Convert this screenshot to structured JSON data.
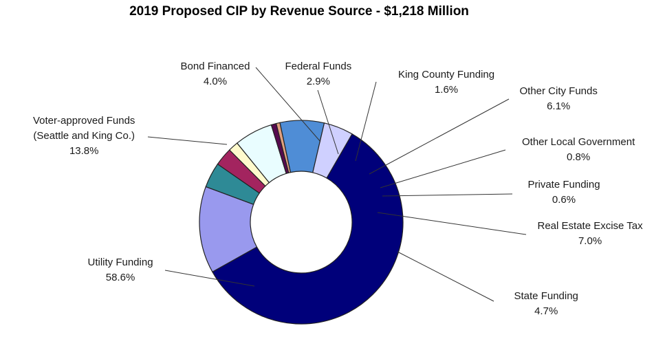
{
  "chart_data": {
    "type": "pie",
    "title": "2019 Proposed CIP by Revenue Source - $1,218 Million",
    "style": "donut",
    "slices": [
      {
        "name": "Utility Funding",
        "value": 58.6,
        "label": "58.6%",
        "color": "#00007a"
      },
      {
        "name": "Voter-approved Funds (Seattle and King Co.)",
        "name_lines": [
          "Voter-approved Funds",
          "(Seattle and King Co.)"
        ],
        "value": 13.8,
        "label": "13.8%",
        "color": "#9999ee"
      },
      {
        "name": "Bond Financed",
        "value": 4.0,
        "label": "4.0%",
        "color": "#2e8a96"
      },
      {
        "name": "Federal Funds",
        "value": 2.9,
        "label": "2.9%",
        "color": "#a3245f"
      },
      {
        "name": "King County Funding",
        "value": 1.6,
        "label": "1.6%",
        "color": "#fffacc"
      },
      {
        "name": "Other City Funds",
        "value": 6.1,
        "label": "6.1%",
        "color": "#e9fdff"
      },
      {
        "name": "Other Local Government",
        "value": 0.8,
        "label": "0.8%",
        "color": "#550a4f"
      },
      {
        "name": "Private Funding",
        "value": 0.6,
        "label": "0.6%",
        "color": "#e0a080"
      },
      {
        "name": "Real Estate Excise Tax",
        "value": 7.0,
        "label": "7.0%",
        "color": "#4f8dd6"
      },
      {
        "name": "State Funding",
        "value": 4.7,
        "label": "4.7%",
        "color": "#cfd0ff"
      }
    ]
  }
}
